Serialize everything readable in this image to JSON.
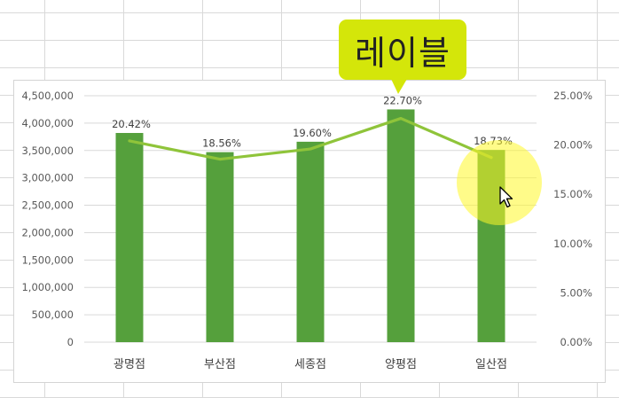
{
  "callout": {
    "text": "레이블"
  },
  "colors": {
    "bar": "#55a03c",
    "line": "#8fc43a",
    "callout": "#d4e60a",
    "highlight": "#fff828"
  },
  "icons": {
    "cursor": "mouse-pointer-icon"
  },
  "chart_data": {
    "type": "bar",
    "categories": [
      "광명점",
      "부산점",
      "세종점",
      "양평점",
      "일산점"
    ],
    "series": [
      {
        "type": "bar",
        "axis": "left",
        "values": [
          3820000,
          3470000,
          3660000,
          4250000,
          3510000
        ]
      },
      {
        "type": "line",
        "axis": "right",
        "values": [
          0.2042,
          0.1856,
          0.196,
          0.227,
          0.1873
        ],
        "labels": [
          "20.42%",
          "18.56%",
          "19.60%",
          "22.70%",
          "18.73%"
        ]
      }
    ],
    "y_left": {
      "range": [
        0,
        4500000
      ],
      "ticks": [
        "0",
        "500,000",
        "1,000,000",
        "1,500,000",
        "2,000,000",
        "2,500,000",
        "3,000,000",
        "3,500,000",
        "4,000,000",
        "4,500,000"
      ]
    },
    "y_right": {
      "range": [
        0,
        0.25
      ],
      "ticks": [
        "0.00%",
        "5.00%",
        "10.00%",
        "15.00%",
        "20.00%",
        "25.00%"
      ]
    },
    "grid": true,
    "legend": "none"
  }
}
